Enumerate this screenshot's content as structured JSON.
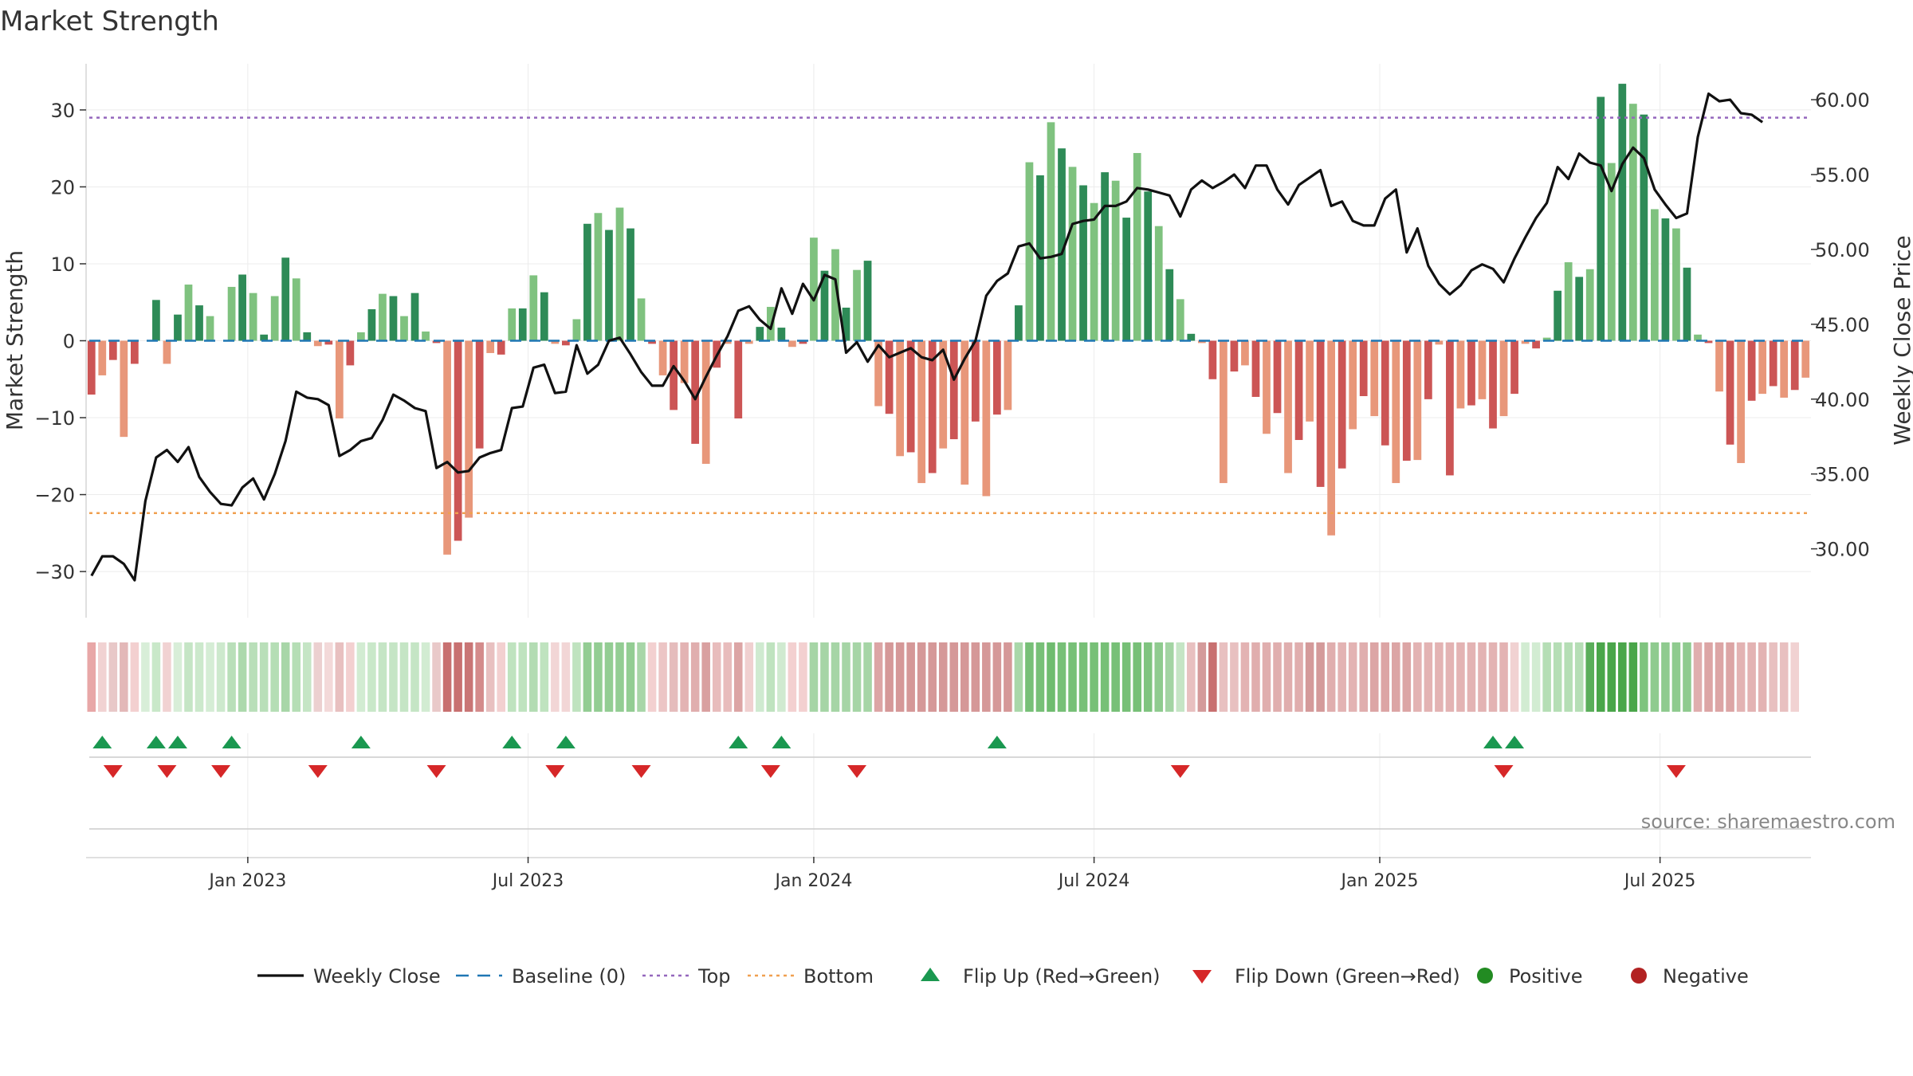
{
  "chart_data": {
    "type": "bar",
    "title": "Market Strength",
    "ylabel": "Market Strength",
    "y2label": "Weekly Close Price",
    "source": "source: sharemaestro.com",
    "ylim": [
      -36,
      36
    ],
    "y2lim": [
      25.4,
      62.4
    ],
    "yticks": [
      {
        "v": 30,
        "label": "30"
      },
      {
        "v": 20,
        "label": "20"
      },
      {
        "v": 10,
        "label": "10"
      },
      {
        "v": 0,
        "label": "0"
      },
      {
        "v": -10,
        "label": "−10"
      },
      {
        "v": -20,
        "label": "−20"
      },
      {
        "v": -30,
        "label": "−30"
      }
    ],
    "y2ticks": [
      {
        "v": 30,
        "label": "30.00"
      },
      {
        "v": 35,
        "label": "35.00"
      },
      {
        "v": 40,
        "label": "40.00"
      },
      {
        "v": 45,
        "label": "45.00"
      },
      {
        "v": 50,
        "label": "50.00"
      },
      {
        "v": 55,
        "label": "55.00"
      },
      {
        "v": 60,
        "label": "60.00"
      }
    ],
    "xticks": [
      {
        "index": 14.5,
        "label": "Jan 2023"
      },
      {
        "index": 40.5,
        "label": "Jul 2023"
      },
      {
        "index": 67,
        "label": "Jan 2024"
      },
      {
        "index": 93,
        "label": "Jul 2024"
      },
      {
        "index": 119.5,
        "label": "Jan 2025"
      },
      {
        "index": 145.5,
        "label": "Jul 2025"
      }
    ],
    "top_level": 29,
    "bottom_level": -22.4,
    "colors": {
      "pos_dark": "#2e8b57",
      "pos_light": "#7fc27f",
      "neg_dark": "#cc5555",
      "neg_light": "#e8977a",
      "line": "#111111",
      "baseline": "#1f77b4",
      "top": "#9467bd",
      "bottom": "#f0a050",
      "flip_up": "#1a9850",
      "flip_down": "#d62728",
      "positive": "#228b22",
      "negative": "#b22222"
    },
    "strength": [
      -7,
      -4.5,
      -2.5,
      -12.5,
      -3,
      0,
      5.3,
      -3,
      3.4,
      7.3,
      4.6,
      3.2,
      0,
      7,
      8.6,
      6.2,
      0.8,
      5.8,
      10.8,
      8.1,
      1.1,
      -0.7,
      -0.5,
      -10.1,
      -3.2,
      1.1,
      4.1,
      6.1,
      5.8,
      3.2,
      6.2,
      1.2,
      -0.3,
      -27.8,
      -26,
      -23,
      -14,
      -1.6,
      -1.8,
      4.2,
      4.2,
      8.5,
      6.3,
      -0.4,
      -0.6,
      2.8,
      15.2,
      16.6,
      14.4,
      17.3,
      14.6,
      5.5,
      -0.4,
      -4.5,
      -9,
      -5.5,
      -13.4,
      -16,
      -3.5,
      -0.4,
      -10.1,
      -0.4,
      1.8,
      4.4,
      1.7,
      -0.8,
      -0.4,
      13.4,
      9.1,
      11.9,
      4.3,
      9.2,
      10.4,
      -8.5,
      -9.5,
      -15,
      -14.5,
      -18.5,
      -17.2,
      -14,
      -12.8,
      -18.7,
      -10.5,
      -20.2,
      -9.6,
      -9,
      4.6,
      23.2,
      21.5,
      28.4,
      25,
      22.6,
      20.2,
      17.9,
      21.9,
      20.8,
      16,
      24.4,
      19.4,
      14.9,
      9.3,
      5.4,
      0.9,
      -0.3,
      -5,
      -18.5,
      -4,
      -3.2,
      -7.3,
      -12.1,
      -9.4,
      -17.2,
      -12.9,
      -10.5,
      -19,
      -25.3,
      -16.6,
      -11.5,
      -7.2,
      -9.8,
      -13.6,
      -18.5,
      -15.6,
      -15.5,
      -7.6,
      -0.5,
      -17.5,
      -8.8,
      -8.4,
      -7.6,
      -11.4,
      -9.8,
      -6.9,
      -0.4,
      -1,
      0.4,
      6.5,
      10.2,
      8.3,
      9.3,
      31.7,
      23.1,
      33.4,
      30.8,
      29.4,
      17.1,
      15.9,
      14.6,
      9.5,
      0.8,
      -0.3,
      -6.6,
      -13.5,
      -15.9,
      -7.8,
      -6.9,
      -5.9,
      -7.4,
      -6.4,
      -4.8
    ],
    "close": [
      28.2,
      29.5,
      29.5,
      29,
      27.9,
      33.2,
      36.1,
      36.6,
      35.8,
      36.8,
      34.8,
      33.8,
      33,
      32.9,
      34.1,
      34.7,
      33.3,
      35,
      37.2,
      40.5,
      40.1,
      40,
      39.6,
      36.2,
      36.6,
      37.2,
      37.4,
      38.6,
      40.3,
      39.9,
      39.4,
      39.2,
      35.4,
      35.8,
      35.1,
      35.2,
      36.1,
      36.4,
      36.6,
      39.4,
      39.5,
      42.1,
      42.3,
      40.4,
      40.5,
      43.6,
      41.7,
      42.3,
      43.9,
      44.1,
      43,
      41.8,
      40.9,
      40.9,
      42.2,
      41.2,
      40,
      41.5,
      42.9,
      44.2,
      45.9,
      46.2,
      45.3,
      44.7,
      47.4,
      45.7,
      47.7,
      46.6,
      48.3,
      48,
      43.1,
      43.8,
      42.5,
      43.6,
      42.8,
      43.1,
      43.4,
      42.8,
      42.6,
      43.3,
      41.3,
      42.7,
      43.9,
      46.9,
      47.9,
      48.4,
      50.2,
      50.4,
      49.4,
      49.5,
      49.7,
      51.7,
      51.9,
      52,
      52.9,
      52.9,
      53.2,
      54.1,
      54,
      53.8,
      53.6,
      52.2,
      54,
      54.6,
      54.1,
      54.5,
      55,
      54.1,
      55.6,
      55.6,
      54,
      53,
      54.3,
      54.8,
      55.3,
      52.9,
      53.2,
      51.9,
      51.6,
      51.6,
      53.4,
      54,
      49.8,
      51.4,
      48.9,
      47.7,
      47,
      47.6,
      48.6,
      49,
      48.7,
      47.8,
      49.4,
      50.8,
      52.1,
      53.1,
      55.5,
      54.7,
      56.4,
      55.8,
      55.6,
      53.9,
      55.7,
      56.8,
      56.1,
      54,
      53,
      52.1,
      52.4,
      57.5,
      60.4,
      59.9,
      60,
      59.1,
      59,
      58.5
    ],
    "strip_colors": [
      "#e8a7a7",
      "#f1d2d2",
      "#e8c8c8",
      "#e3b8b8",
      "#f3d0d0",
      "#d8eed8",
      "#c9e8c9",
      "#f1d2d2",
      "#d8eed8",
      "#c5e5c5",
      "#cce9cc",
      "#d5edd5",
      "#cde9cd",
      "#b9dfb9",
      "#add9ad",
      "#b9dfb9",
      "#b9dfb9",
      "#b5deb5",
      "#a8d6a8",
      "#b5deb5",
      "#c5e5c5",
      "#ecd0d0",
      "#f3d9d9",
      "#e8c0c0",
      "#f3d0d0",
      "#d2ecd2",
      "#c9e8c9",
      "#c5e5c5",
      "#c5e5c5",
      "#c5e5c5",
      "#c5e5c5",
      "#d2ecd2",
      "#e9c9c9",
      "#c87070",
      "#c87070",
      "#c97575",
      "#d48b8b",
      "#e8c0c0",
      "#f3d0d0",
      "#bfe3bf",
      "#bfe3bf",
      "#b3dcb3",
      "#bfe3bf",
      "#f2d6d6",
      "#f2d6d6",
      "#bfe3bf",
      "#93cd93",
      "#93cd93",
      "#93cd93",
      "#93cd93",
      "#93cd93",
      "#a8d6a8",
      "#f3d0d0",
      "#ecc5c5",
      "#e5bcbc",
      "#e3b3b3",
      "#e0aeae",
      "#d9a0a0",
      "#e8bcbc",
      "#e8bcbc",
      "#dca5a5",
      "#f0d0d0",
      "#cfead0",
      "#bfe3bf",
      "#d0ead0",
      "#f3d0d0",
      "#f3d0d0",
      "#a6d5a6",
      "#a6d5a6",
      "#a6d5a6",
      "#a6d5a6",
      "#a6d5a6",
      "#a6d5a6",
      "#dca5a5",
      "#d59898",
      "#d59898",
      "#d59898",
      "#d59898",
      "#d59898",
      "#d59898",
      "#d59898",
      "#d59898",
      "#d59898",
      "#d59898",
      "#d59898",
      "#d59898",
      "#a9d7a9",
      "#77c077",
      "#77c077",
      "#6fbc6f",
      "#77c077",
      "#77c077",
      "#77c077",
      "#77c077",
      "#77c077",
      "#77c077",
      "#77c077",
      "#77c077",
      "#7fc47f",
      "#8fcb8f",
      "#a3d4a3",
      "#c5e5c5",
      "#e8c0c0",
      "#d49a9a",
      "#c87070",
      "#e8c0c0",
      "#e8c0c0",
      "#e3b3b3",
      "#e0aeae",
      "#e0aeae",
      "#e0aeae",
      "#e0aeae",
      "#e0aeae",
      "#d49a9a",
      "#d49a9a",
      "#e0aeae",
      "#e3b3b3",
      "#e3b3b3",
      "#e0aeae",
      "#dca5a5",
      "#dca5a5",
      "#dca5a5",
      "#dca5a5",
      "#e3b3b3",
      "#e3b3b3",
      "#e3b3b3",
      "#e3b3b3",
      "#e3b3b3",
      "#e3b3b3",
      "#e3b3b3",
      "#e3b3b3",
      "#e3b3b3",
      "#f1d2d2",
      "#d2ecd2",
      "#d2ecd2",
      "#b5deb5",
      "#b5deb5",
      "#b5deb5",
      "#b5deb5",
      "#5aae5a",
      "#4aa64a",
      "#4aa64a",
      "#4aa64a",
      "#4aa64a",
      "#7fc47f",
      "#8fcb8f",
      "#8fcb8f",
      "#8fcb8f",
      "#8fcb8f",
      "#e0aeae",
      "#dca5a5",
      "#dca5a5",
      "#dca5a5",
      "#e3b3b3",
      "#e3b3b3",
      "#e3b3b3",
      "#e8c0c0",
      "#e8c0c0",
      "#f1d2d2"
    ],
    "flips_up": [
      1,
      6,
      8,
      13,
      25,
      39,
      44,
      60,
      64,
      84,
      130,
      132
    ],
    "flips_down": [
      2,
      7,
      12,
      21,
      32,
      43,
      51,
      63,
      71,
      101,
      131,
      147
    ],
    "legend": [
      {
        "key": "line",
        "label": "Weekly Close"
      },
      {
        "key": "baseline",
        "label": "Baseline (0)"
      },
      {
        "key": "top",
        "label": "Top"
      },
      {
        "key": "bottom",
        "label": "Bottom"
      },
      {
        "key": "flip_up",
        "label": "Flip Up (Red→Green)"
      },
      {
        "key": "flip_down",
        "label": "Flip Down (Green→Red)"
      },
      {
        "key": "positive",
        "label": "Positive"
      },
      {
        "key": "negative",
        "label": "Negative"
      }
    ]
  }
}
